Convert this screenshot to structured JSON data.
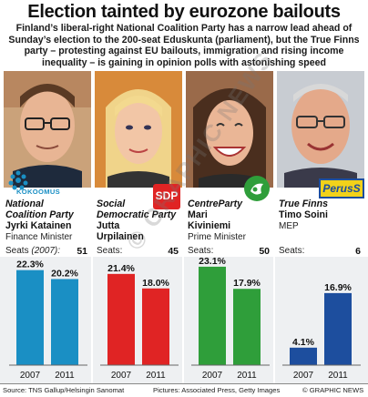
{
  "headline": "Election tainted by eurozone bailouts",
  "intro": "Finland’s liberal-right National Coalition Party has a narrow lead ahead of Sunday’s election to the 200-seat Eduskunta (parliament), but the True Finns party – protesting against EU bailouts, immigration and rising income inequality – is gaining in opinion polls with astonishing speed",
  "parties": [
    {
      "logo_text": "KOKOOMUS",
      "name_line1": "National",
      "name_line2": "Coalition Party",
      "leader_line1": "Jyrki Katainen",
      "leader_line2": "",
      "role": "Finance Minister",
      "seats_label": "Seats",
      "seats_year": "(2007):",
      "seats": "51",
      "color": "#1a8fc4"
    },
    {
      "logo_text": "SDP",
      "name_line1": "Social",
      "name_line2": "Democratic Party",
      "leader_line1": "Jutta",
      "leader_line2": "Urpilainen",
      "role": "",
      "seats_label": "Seats:",
      "seats_year": "",
      "seats": "45",
      "color": "#e02424"
    },
    {
      "logo_text": "",
      "name_line1": "CentreParty",
      "name_line2": "",
      "leader_line1": "Mari",
      "leader_line2": "Kiviniemi",
      "role": "Prime Minister",
      "seats_label": "Seats:",
      "seats_year": "",
      "seats": "50",
      "color": "#2f9e3a"
    },
    {
      "logo_text": "PerusS",
      "name_line1": "True Finns",
      "name_line2": "",
      "leader_line1": "Timo Soini",
      "leader_line2": "",
      "role": "MEP",
      "seats_label": "Seats:",
      "seats_year": "",
      "seats": "6",
      "color": "#1d4e9e"
    }
  ],
  "chart_data": {
    "type": "bar",
    "categories": [
      "2007",
      "2011"
    ],
    "ylim": [
      0,
      25
    ],
    "series": [
      {
        "values": [
          22.3,
          20.2
        ],
        "labels": [
          "22.3%",
          "20.2%"
        ],
        "color": "#1a8fc4"
      },
      {
        "values": [
          21.4,
          18.0
        ],
        "labels": [
          "21.4%",
          "18.0%"
        ],
        "color": "#e02424"
      },
      {
        "values": [
          23.1,
          17.9
        ],
        "labels": [
          "23.1%",
          "17.9%"
        ],
        "color": "#2f9e3a"
      },
      {
        "values": [
          4.1,
          16.9
        ],
        "labels": [
          "4.1%",
          "16.9%"
        ],
        "color": "#1d4e9e"
      }
    ]
  },
  "footer": {
    "source": "Source: TNS Gallup/Helsingin Sanomat",
    "pictures": "Pictures: Associated Press, Getty Images",
    "copyright": "© GRAPHIC NEWS"
  },
  "watermark": "© GRAPHIC NEWS"
}
